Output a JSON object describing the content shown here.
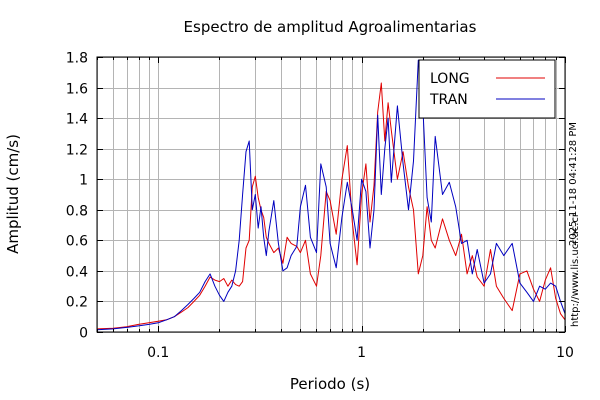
{
  "chart_data": {
    "type": "line",
    "title": "Espectro de amplitud Agroalimentarias",
    "xlabel": "Periodo (s)",
    "ylabel": "Amplitud (cm/s)",
    "xscale": "log",
    "xlim": [
      0.05,
      10
    ],
    "ylim": [
      0,
      1.8
    ],
    "xticks": [
      {
        "value": 0.1,
        "label": "0.1"
      },
      {
        "value": 1,
        "label": "1"
      },
      {
        "value": 10,
        "label": "10"
      }
    ],
    "yticks": [
      {
        "value": 0,
        "label": "0"
      },
      {
        "value": 0.2,
        "label": "0.2"
      },
      {
        "value": 0.4,
        "label": "0.4"
      },
      {
        "value": 0.6,
        "label": "0.6"
      },
      {
        "value": 0.8,
        "label": "0.8"
      },
      {
        "value": 1.0,
        "label": "1"
      },
      {
        "value": 1.2,
        "label": "1.2"
      },
      {
        "value": 1.4,
        "label": "1.4"
      },
      {
        "value": 1.6,
        "label": "1.6"
      },
      {
        "value": 1.8,
        "label": "1.8"
      }
    ],
    "grid": true,
    "legend_position": "top-right",
    "series": [
      {
        "name": "LONG",
        "color": "#e00000",
        "x": [
          0.05,
          0.06,
          0.07,
          0.08,
          0.09,
          0.1,
          0.11,
          0.12,
          0.13,
          0.14,
          0.15,
          0.16,
          0.17,
          0.18,
          0.19,
          0.2,
          0.21,
          0.22,
          0.23,
          0.24,
          0.25,
          0.26,
          0.27,
          0.28,
          0.29,
          0.3,
          0.31,
          0.32,
          0.33,
          0.34,
          0.35,
          0.37,
          0.39,
          0.41,
          0.43,
          0.45,
          0.48,
          0.5,
          0.53,
          0.56,
          0.6,
          0.63,
          0.67,
          0.7,
          0.75,
          0.8,
          0.85,
          0.9,
          0.95,
          1.0,
          1.05,
          1.1,
          1.15,
          1.2,
          1.25,
          1.3,
          1.35,
          1.4,
          1.5,
          1.6,
          1.7,
          1.8,
          1.9,
          2.0,
          2.1,
          2.2,
          2.3,
          2.5,
          2.7,
          2.9,
          3.1,
          3.3,
          3.5,
          3.7,
          4.0,
          4.3,
          4.6,
          5.0,
          5.5,
          6.0,
          6.5,
          7.0,
          7.5,
          8.0,
          8.5,
          9.0,
          9.5,
          10.0
        ],
        "y": [
          0.02,
          0.025,
          0.035,
          0.05,
          0.06,
          0.07,
          0.08,
          0.1,
          0.13,
          0.16,
          0.2,
          0.24,
          0.3,
          0.36,
          0.34,
          0.33,
          0.35,
          0.3,
          0.34,
          0.31,
          0.3,
          0.33,
          0.55,
          0.6,
          0.95,
          1.02,
          0.88,
          0.8,
          0.75,
          0.62,
          0.58,
          0.52,
          0.55,
          0.45,
          0.62,
          0.58,
          0.56,
          0.52,
          0.6,
          0.38,
          0.3,
          0.5,
          0.92,
          0.86,
          0.64,
          1.0,
          1.22,
          0.72,
          0.44,
          0.9,
          1.1,
          0.72,
          0.96,
          1.44,
          1.63,
          1.25,
          1.5,
          1.32,
          1.0,
          1.18,
          0.95,
          0.8,
          0.38,
          0.5,
          0.82,
          0.6,
          0.55,
          0.74,
          0.6,
          0.5,
          0.64,
          0.38,
          0.5,
          0.36,
          0.3,
          0.54,
          0.3,
          0.22,
          0.14,
          0.38,
          0.4,
          0.28,
          0.2,
          0.34,
          0.42,
          0.22,
          0.12,
          0.08
        ]
      },
      {
        "name": "TRAN",
        "color": "#0000c0",
        "x": [
          0.05,
          0.06,
          0.07,
          0.08,
          0.09,
          0.1,
          0.11,
          0.12,
          0.13,
          0.14,
          0.15,
          0.16,
          0.17,
          0.18,
          0.19,
          0.2,
          0.21,
          0.22,
          0.23,
          0.24,
          0.25,
          0.26,
          0.27,
          0.28,
          0.29,
          0.3,
          0.31,
          0.32,
          0.33,
          0.34,
          0.35,
          0.37,
          0.39,
          0.41,
          0.43,
          0.45,
          0.48,
          0.5,
          0.53,
          0.56,
          0.6,
          0.63,
          0.67,
          0.7,
          0.75,
          0.8,
          0.85,
          0.9,
          0.95,
          1.0,
          1.05,
          1.1,
          1.15,
          1.2,
          1.25,
          1.3,
          1.35,
          1.4,
          1.5,
          1.6,
          1.7,
          1.8,
          1.9,
          2.0,
          2.1,
          2.2,
          2.3,
          2.5,
          2.7,
          2.9,
          3.1,
          3.3,
          3.5,
          3.7,
          4.0,
          4.3,
          4.6,
          5.0,
          5.5,
          6.0,
          6.5,
          7.0,
          7.5,
          8.0,
          8.5,
          9.0,
          9.5,
          10.0
        ],
        "y": [
          0.015,
          0.02,
          0.03,
          0.04,
          0.05,
          0.06,
          0.08,
          0.1,
          0.14,
          0.18,
          0.22,
          0.26,
          0.33,
          0.38,
          0.3,
          0.24,
          0.2,
          0.26,
          0.3,
          0.4,
          0.6,
          0.9,
          1.18,
          1.25,
          0.8,
          0.9,
          0.68,
          0.82,
          0.62,
          0.5,
          0.66,
          0.86,
          0.58,
          0.4,
          0.42,
          0.5,
          0.56,
          0.82,
          0.96,
          0.62,
          0.52,
          1.1,
          0.95,
          0.58,
          0.42,
          0.75,
          0.98,
          0.8,
          0.6,
          1.0,
          0.92,
          0.55,
          0.8,
          1.42,
          0.9,
          1.2,
          1.4,
          0.98,
          1.48,
          1.1,
          0.8,
          1.12,
          1.78,
          1.48,
          0.88,
          0.72,
          1.28,
          0.9,
          0.98,
          0.82,
          0.58,
          0.6,
          0.38,
          0.54,
          0.32,
          0.38,
          0.58,
          0.5,
          0.58,
          0.32,
          0.26,
          0.2,
          0.3,
          0.28,
          0.32,
          0.3,
          0.2,
          0.12
        ]
      }
    ]
  },
  "side_labels": {
    "timestamp": "2025-11-18 04:41:28 PM",
    "source": "http://www.lis.ucr.ac.cr"
  }
}
